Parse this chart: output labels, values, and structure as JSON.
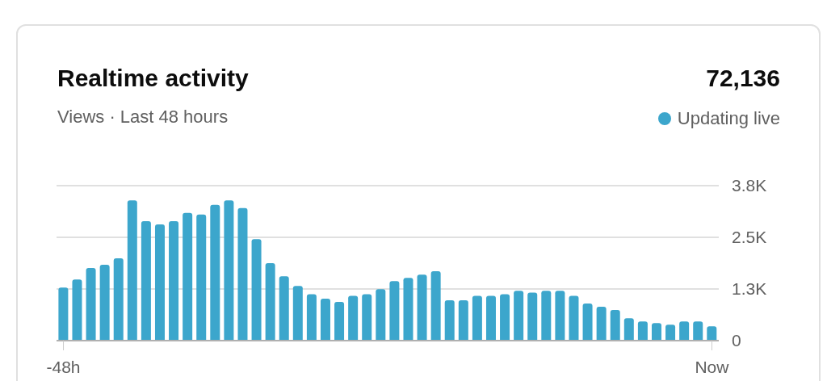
{
  "chart_data": {
    "type": "bar",
    "title": "Realtime activity",
    "subtitle": "Views · Last 48 hours",
    "annotations": [
      "72,136",
      "Updating live"
    ],
    "categories": [
      "-48h",
      null,
      null,
      null,
      null,
      null,
      null,
      null,
      null,
      null,
      null,
      null,
      null,
      null,
      null,
      null,
      null,
      null,
      null,
      null,
      null,
      null,
      null,
      null,
      null,
      null,
      null,
      null,
      null,
      null,
      null,
      null,
      null,
      null,
      null,
      null,
      null,
      null,
      null,
      null,
      null,
      null,
      null,
      null,
      null,
      null,
      null,
      "Now"
    ],
    "values": [
      1300,
      1500,
      1780,
      1860,
      2020,
      3440,
      2930,
      2850,
      2930,
      3130,
      3090,
      3330,
      3440,
      3250,
      2490,
      1900,
      1580,
      1340,
      1140,
      1030,
      950,
      1100,
      1140,
      1260,
      1460,
      1540,
      1620,
      1700,
      990,
      990,
      1100,
      1100,
      1140,
      1220,
      1180,
      1220,
      1220,
      1100,
      910,
      830,
      750,
      550,
      470,
      430,
      390,
      470,
      470,
      350
    ],
    "color": "#3ca6cc",
    "ylim": [
      0,
      3800
    ],
    "yticks": [
      0,
      {
        "value": 1266.67,
        "label": "1.3K"
      },
      {
        "value": 2533.33,
        "label": "2.5K"
      },
      {
        "value": 3800,
        "label": "3.8K"
      }
    ],
    "grid": "y"
  }
}
